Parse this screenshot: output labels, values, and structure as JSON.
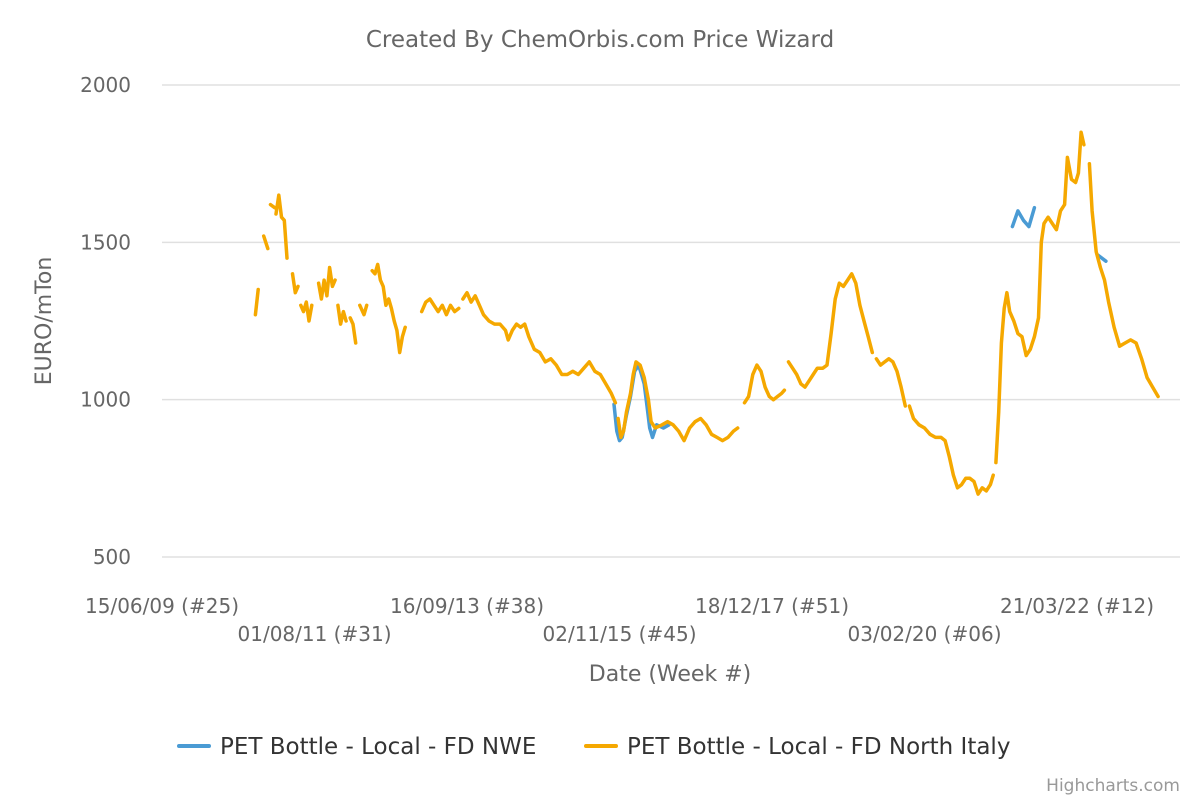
{
  "chart_data": {
    "type": "line",
    "title": "Created By ChemOrbis.com Price Wizard",
    "xlabel": "Date (Week #)",
    "ylabel": "EURO/mTon",
    "ylim": [
      500,
      2000
    ],
    "yticks": [
      "500",
      "1000",
      "1500",
      "2000"
    ],
    "x_tick_labels": [
      "15/06/09 (#25)",
      "01/08/11 (#31)",
      "16/09/13 (#38)",
      "02/11/15 (#45)",
      "18/12/17 (#51)",
      "03/02/20 (#06)",
      "21/03/22 (#12)"
    ],
    "x_tick_dates": [
      "2009-06-15",
      "2011-08-01",
      "2013-09-16",
      "2015-11-02",
      "2017-12-18",
      "2020-02-03",
      "2022-03-21"
    ],
    "grid": true,
    "legend_position": "bottom-center",
    "credits": "Highcharts.com",
    "series": [
      {
        "name": "PET Bottle - Local - FD NWE",
        "color": "#4a9bd4",
        "segments": [
          [
            [
              "2015-10-05",
              985
            ],
            [
              "2015-10-19",
              900
            ],
            [
              "2015-11-02",
              870
            ],
            [
              "2015-11-16",
              880
            ],
            [
              "2015-12-07",
              950
            ],
            [
              "2015-12-28",
              1010
            ],
            [
              "2016-01-18",
              1090
            ],
            [
              "2016-02-08",
              1110
            ],
            [
              "2016-02-22",
              1080
            ],
            [
              "2016-03-07",
              1050
            ],
            [
              "2016-03-21",
              980
            ],
            [
              "2016-04-04",
              910
            ],
            [
              "2016-04-18",
              880
            ],
            [
              "2016-05-09",
              920
            ],
            [
              "2016-06-13",
              910
            ],
            [
              "2016-07-11",
              920
            ]
          ],
          [
            [
              "2021-04-26",
              1550
            ],
            [
              "2021-05-24",
              1600
            ],
            [
              "2021-06-21",
              1570
            ],
            [
              "2021-07-19",
              1550
            ],
            [
              "2021-08-16",
              1610
            ]
          ],
          [
            [
              "2022-07-04",
              1460
            ],
            [
              "2022-08-15",
              1440
            ]
          ]
        ]
      },
      {
        "name": "PET Bottle - Local - FD North Italy",
        "color": "#f5a800",
        "segments": [
          [
            [
              "2010-10-04",
              1270
            ],
            [
              "2010-10-18",
              1350
            ]
          ],
          [
            [
              "2010-11-15",
              1520
            ],
            [
              "2010-12-06",
              1480
            ]
          ],
          [
            [
              "2010-12-20",
              1620
            ],
            [
              "2011-01-10",
              1610
            ]
          ],
          [
            [
              "2011-01-17",
              1590
            ],
            [
              "2011-01-31",
              1650
            ],
            [
              "2011-02-14",
              1580
            ],
            [
              "2011-02-28",
              1570
            ],
            [
              "2011-03-14",
              1450
            ]
          ],
          [
            [
              "2011-04-11",
              1400
            ],
            [
              "2011-04-25",
              1340
            ],
            [
              "2011-05-09",
              1360
            ]
          ],
          [
            [
              "2011-05-23",
              1300
            ],
            [
              "2011-06-06",
              1280
            ],
            [
              "2011-06-20",
              1310
            ],
            [
              "2011-07-04",
              1250
            ],
            [
              "2011-07-18",
              1300
            ]
          ],
          [
            [
              "2011-08-22",
              1370
            ],
            [
              "2011-09-05",
              1320
            ],
            [
              "2011-09-19",
              1380
            ],
            [
              "2011-10-03",
              1330
            ],
            [
              "2011-10-17",
              1420
            ],
            [
              "2011-10-31",
              1360
            ],
            [
              "2011-11-14",
              1380
            ]
          ],
          [
            [
              "2011-11-28",
              1300
            ],
            [
              "2011-12-12",
              1240
            ],
            [
              "2011-12-26",
              1280
            ],
            [
              "2012-01-09",
              1250
            ]
          ],
          [
            [
              "2012-01-30",
              1260
            ],
            [
              "2012-02-13",
              1240
            ],
            [
              "2012-02-27",
              1180
            ]
          ],
          [
            [
              "2012-03-19",
              1300
            ],
            [
              "2012-04-09",
              1270
            ],
            [
              "2012-04-23",
              1300
            ]
          ],
          [
            [
              "2012-05-21",
              1410
            ],
            [
              "2012-06-04",
              1400
            ],
            [
              "2012-06-18",
              1430
            ],
            [
              "2012-07-02",
              1380
            ],
            [
              "2012-07-16",
              1360
            ],
            [
              "2012-07-30",
              1300
            ],
            [
              "2012-08-13",
              1320
            ],
            [
              "2012-08-27",
              1290
            ],
            [
              "2012-09-10",
              1250
            ],
            [
              "2012-09-24",
              1220
            ],
            [
              "2012-10-08",
              1150
            ],
            [
              "2012-10-22",
              1200
            ],
            [
              "2012-11-05",
              1230
            ]
          ],
          [
            [
              "2013-01-28",
              1280
            ],
            [
              "2013-02-18",
              1310
            ],
            [
              "2013-03-11",
              1320
            ],
            [
              "2013-04-01",
              1300
            ],
            [
              "2013-04-22",
              1280
            ],
            [
              "2013-05-13",
              1300
            ],
            [
              "2013-06-03",
              1270
            ],
            [
              "2013-06-24",
              1300
            ],
            [
              "2013-07-15",
              1280
            ],
            [
              "2013-08-05",
              1290
            ]
          ],
          [
            [
              "2013-08-26",
              1320
            ],
            [
              "2013-09-16",
              1340
            ],
            [
              "2013-10-07",
              1310
            ],
            [
              "2013-10-28",
              1330
            ],
            [
              "2013-11-18",
              1300
            ],
            [
              "2013-12-09",
              1270
            ],
            [
              "2014-01-06",
              1250
            ],
            [
              "2014-02-03",
              1240
            ],
            [
              "2014-03-03",
              1240
            ],
            [
              "2014-03-31",
              1220
            ],
            [
              "2014-04-14",
              1190
            ],
            [
              "2014-05-05",
              1220
            ],
            [
              "2014-05-26",
              1240
            ],
            [
              "2014-06-16",
              1230
            ],
            [
              "2014-07-07",
              1240
            ],
            [
              "2014-07-28",
              1200
            ],
            [
              "2014-08-25",
              1160
            ],
            [
              "2014-09-22",
              1150
            ],
            [
              "2014-10-20",
              1120
            ],
            [
              "2014-11-17",
              1130
            ],
            [
              "2014-12-15",
              1110
            ],
            [
              "2015-01-12",
              1080
            ],
            [
              "2015-02-09",
              1080
            ],
            [
              "2015-03-09",
              1090
            ],
            [
              "2015-04-06",
              1080
            ],
            [
              "2015-05-04",
              1100
            ],
            [
              "2015-06-01",
              1120
            ],
            [
              "2015-06-29",
              1090
            ],
            [
              "2015-07-27",
              1080
            ],
            [
              "2015-08-24",
              1050
            ],
            [
              "2015-09-21",
              1020
            ],
            [
              "2015-10-12",
              990
            ]
          ],
          [
            [
              "2015-10-26",
              940
            ],
            [
              "2015-11-09",
              880
            ],
            [
              "2015-11-23",
              900
            ],
            [
              "2015-12-07",
              960
            ],
            [
              "2015-12-28",
              1020
            ],
            [
              "2016-01-11",
              1080
            ],
            [
              "2016-01-25",
              1120
            ],
            [
              "2016-02-15",
              1110
            ],
            [
              "2016-03-07",
              1070
            ],
            [
              "2016-03-28",
              1000
            ],
            [
              "2016-04-11",
              930
            ],
            [
              "2016-05-02",
              910
            ],
            [
              "2016-06-06",
              920
            ],
            [
              "2016-07-04",
              930
            ],
            [
              "2016-08-01",
              920
            ],
            [
              "2016-08-29",
              900
            ],
            [
              "2016-09-26",
              870
            ],
            [
              "2016-10-24",
              910
            ],
            [
              "2016-11-21",
              930
            ],
            [
              "2016-12-19",
              940
            ],
            [
              "2017-01-16",
              920
            ],
            [
              "2017-02-13",
              890
            ],
            [
              "2017-03-13",
              880
            ],
            [
              "2017-04-10",
              870
            ],
            [
              "2017-05-08",
              880
            ],
            [
              "2017-06-05",
              900
            ],
            [
              "2017-06-26",
              910
            ]
          ],
          [
            [
              "2017-07-31",
              990
            ],
            [
              "2017-08-21",
              1010
            ],
            [
              "2017-09-11",
              1080
            ],
            [
              "2017-10-02",
              1110
            ],
            [
              "2017-10-23",
              1090
            ],
            [
              "2017-11-13",
              1040
            ],
            [
              "2017-12-04",
              1010
            ],
            [
              "2017-12-25",
              1000
            ],
            [
              "2018-01-15",
              1010
            ],
            [
              "2018-02-05",
              1020
            ],
            [
              "2018-02-19",
              1030
            ]
          ],
          [
            [
              "2018-03-12",
              1120
            ],
            [
              "2018-04-02",
              1100
            ],
            [
              "2018-04-23",
              1080
            ],
            [
              "2018-05-14",
              1050
            ],
            [
              "2018-06-04",
              1040
            ],
            [
              "2018-06-25",
              1060
            ],
            [
              "2018-07-16",
              1080
            ],
            [
              "2018-08-06",
              1100
            ],
            [
              "2018-09-03",
              1100
            ],
            [
              "2018-09-24",
              1110
            ],
            [
              "2018-10-15",
              1210
            ],
            [
              "2018-11-05",
              1320
            ],
            [
              "2018-11-26",
              1370
            ],
            [
              "2018-12-17",
              1360
            ],
            [
              "2019-01-07",
              1380
            ],
            [
              "2019-01-28",
              1400
            ],
            [
              "2019-02-18",
              1370
            ],
            [
              "2019-03-11",
              1300
            ],
            [
              "2019-04-01",
              1250
            ],
            [
              "2019-04-22",
              1200
            ],
            [
              "2019-05-13",
              1150
            ]
          ],
          [
            [
              "2019-06-03",
              1130
            ],
            [
              "2019-06-24",
              1110
            ],
            [
              "2019-07-15",
              1120
            ],
            [
              "2019-08-05",
              1130
            ],
            [
              "2019-08-26",
              1120
            ],
            [
              "2019-09-16",
              1090
            ],
            [
              "2019-10-07",
              1040
            ],
            [
              "2019-10-28",
              980
            ]
          ],
          [
            [
              "2019-11-18",
              980
            ],
            [
              "2019-12-09",
              940
            ],
            [
              "2020-01-06",
              920
            ],
            [
              "2020-02-03",
              910
            ],
            [
              "2020-03-02",
              890
            ],
            [
              "2020-03-30",
              880
            ],
            [
              "2020-04-27",
              880
            ],
            [
              "2020-05-18",
              870
            ],
            [
              "2020-06-08",
              820
            ],
            [
              "2020-06-29",
              760
            ],
            [
              "2020-07-20",
              720
            ],
            [
              "2020-08-10",
              730
            ],
            [
              "2020-08-31",
              750
            ],
            [
              "2020-09-21",
              750
            ],
            [
              "2020-10-12",
              740
            ],
            [
              "2020-11-02",
              700
            ],
            [
              "2020-11-23",
              720
            ],
            [
              "2020-12-14",
              710
            ],
            [
              "2021-01-04",
              730
            ],
            [
              "2021-01-18",
              760
            ]
          ],
          [
            [
              "2021-02-01",
              800
            ],
            [
              "2021-02-15",
              960
            ],
            [
              "2021-03-01",
              1180
            ],
            [
              "2021-03-15",
              1290
            ],
            [
              "2021-03-29",
              1340
            ],
            [
              "2021-04-12",
              1280
            ],
            [
              "2021-05-03",
              1250
            ],
            [
              "2021-05-24",
              1210
            ],
            [
              "2021-06-14",
              1200
            ],
            [
              "2021-07-05",
              1140
            ],
            [
              "2021-07-26",
              1160
            ],
            [
              "2021-08-16",
              1200
            ],
            [
              "2021-09-06",
              1260
            ],
            [
              "2021-09-20",
              1500
            ],
            [
              "2021-10-04",
              1560
            ],
            [
              "2021-10-25",
              1580
            ],
            [
              "2021-11-15",
              1560
            ],
            [
              "2021-12-06",
              1540
            ],
            [
              "2021-12-27",
              1600
            ],
            [
              "2022-01-17",
              1620
            ],
            [
              "2022-01-31",
              1770
            ],
            [
              "2022-02-21",
              1700
            ],
            [
              "2022-03-14",
              1690
            ],
            [
              "2022-03-28",
              1720
            ],
            [
              "2022-04-11",
              1850
            ],
            [
              "2022-04-25",
              1810
            ]
          ],
          [
            [
              "2022-05-23",
              1750
            ],
            [
              "2022-06-06",
              1600
            ],
            [
              "2022-06-27",
              1470
            ],
            [
              "2022-07-18",
              1420
            ],
            [
              "2022-08-08",
              1380
            ],
            [
              "2022-08-29",
              1310
            ],
            [
              "2022-09-26",
              1230
            ],
            [
              "2022-10-24",
              1170
            ],
            [
              "2022-11-21",
              1180
            ],
            [
              "2022-12-19",
              1190
            ],
            [
              "2023-01-16",
              1180
            ],
            [
              "2023-02-13",
              1130
            ],
            [
              "2023-03-13",
              1070
            ],
            [
              "2023-04-10",
              1040
            ],
            [
              "2023-05-08",
              1010
            ]
          ]
        ]
      }
    ]
  }
}
